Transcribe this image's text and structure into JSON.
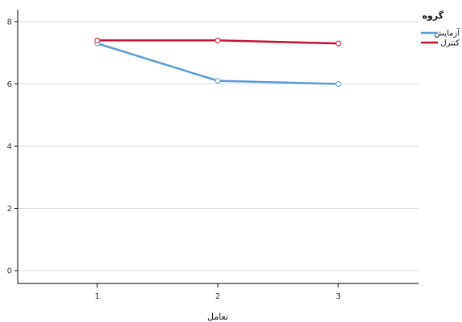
{
  "chart_data": {
    "type": "line",
    "xlabel": "تعامل",
    "categories": [
      "1",
      "2",
      "3"
    ],
    "ylim": [
      0,
      8
    ],
    "yticks": [
      0,
      2,
      4,
      6,
      8
    ],
    "grid": "horizontal",
    "legend": {
      "title": "گروه",
      "placement": "top-right"
    },
    "series": [
      {
        "name": "آزمایش",
        "values": [
          7.3,
          6.1,
          6.0
        ],
        "color": "#5b9bd5"
      },
      {
        "name": "کنترل",
        "values": [
          7.4,
          7.4,
          7.3
        ],
        "color": "#c8102e"
      }
    ]
  }
}
